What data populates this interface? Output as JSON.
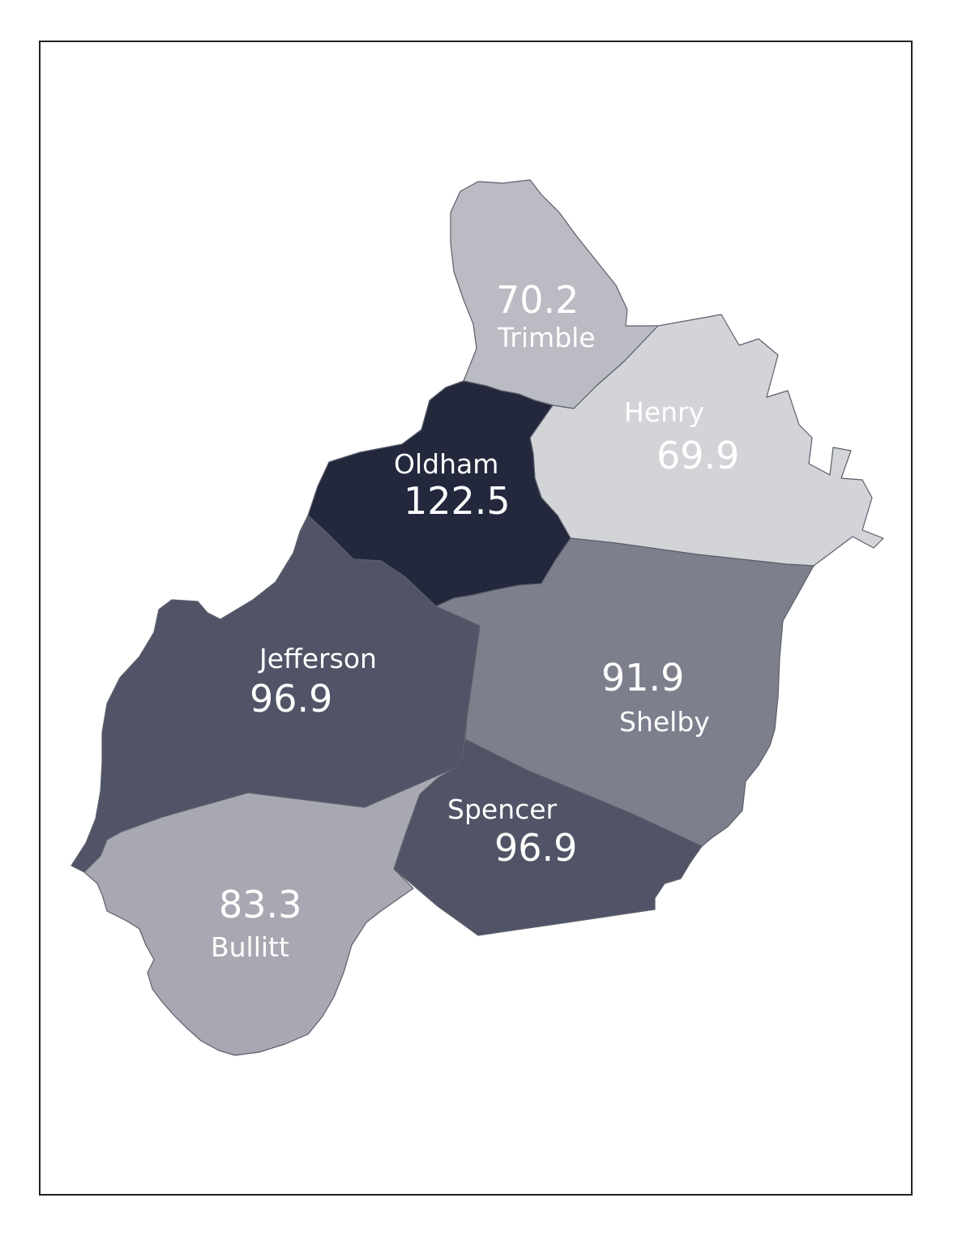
{
  "counties": [
    {
      "id": "trimble",
      "name": "Trimble",
      "value": "70.2",
      "fill": "#babbc3"
    },
    {
      "id": "henry",
      "name": "Henry",
      "value": "69.9",
      "fill": "#d3d4d8"
    },
    {
      "id": "oldham",
      "name": "Oldham",
      "value": "122.5",
      "fill": "#23283d"
    },
    {
      "id": "jefferson",
      "name": "Jefferson",
      "value": "96.9",
      "fill": "#515466"
    },
    {
      "id": "shelby",
      "name": "Shelby",
      "value": "91.9",
      "fill": "#7d808c"
    },
    {
      "id": "spencer",
      "name": "Spencer",
      "value": "96.9",
      "fill": "#515466"
    },
    {
      "id": "bullitt",
      "name": "Bullitt",
      "value": "83.3",
      "fill": "#a7a8b1"
    }
  ]
}
